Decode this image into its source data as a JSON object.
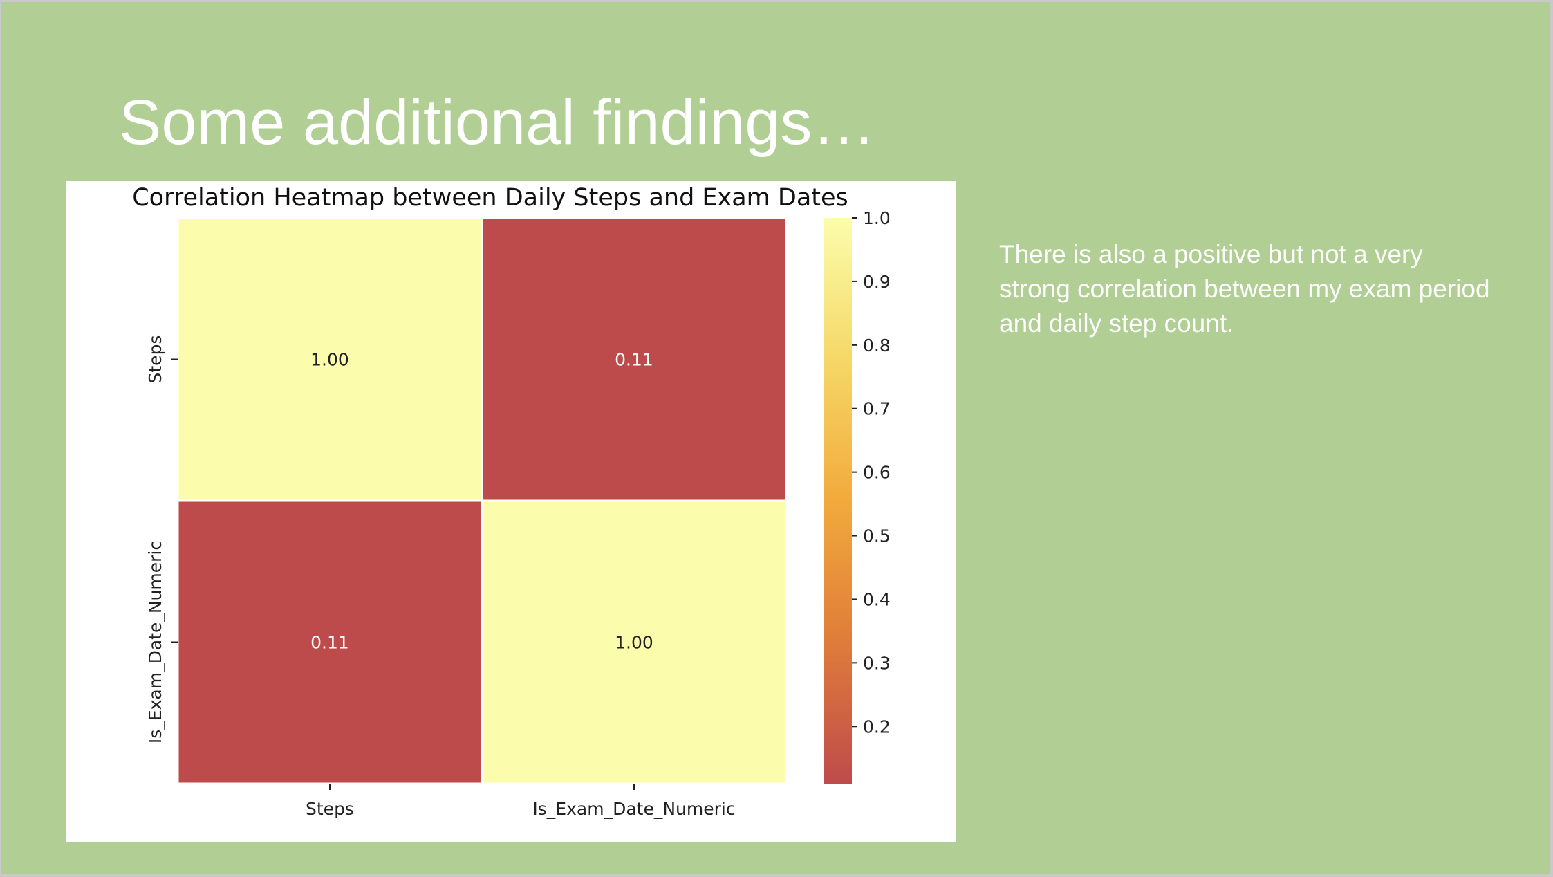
{
  "slide": {
    "title": "Some additional findings…",
    "body_text": "There is also a positive but not a very strong correlation between my exam period and daily step count."
  },
  "colors": {
    "slide_background": "#b1cf95",
    "high_correlation": "#fbfdac",
    "low_correlation": "#be4b4b"
  },
  "chart_data": {
    "type": "heatmap",
    "title": "Correlation Heatmap between Daily Steps and Exam Dates",
    "x_labels": [
      "Steps",
      "Is_Exam_Date_Numeric"
    ],
    "y_labels": [
      "Steps",
      "Is_Exam_Date_Numeric"
    ],
    "values": [
      [
        1.0,
        0.11
      ],
      [
        0.11,
        1.0
      ]
    ],
    "annotations": [
      [
        "1.00",
        "0.11"
      ],
      [
        "0.11",
        "1.00"
      ]
    ],
    "colorbar": {
      "range": [
        0.11,
        1.0
      ],
      "ticks": [
        1.0,
        0.9,
        0.8,
        0.7,
        0.6,
        0.5,
        0.4,
        0.3,
        0.2
      ],
      "tick_labels": [
        "1.0",
        "0.9",
        "0.8",
        "0.7",
        "0.6",
        "0.5",
        "0.4",
        "0.3",
        "0.2"
      ],
      "colormap": [
        "#be4b4b",
        "#df7c3a",
        "#f2aa3c",
        "#f5d867",
        "#fbfdac"
      ]
    }
  }
}
